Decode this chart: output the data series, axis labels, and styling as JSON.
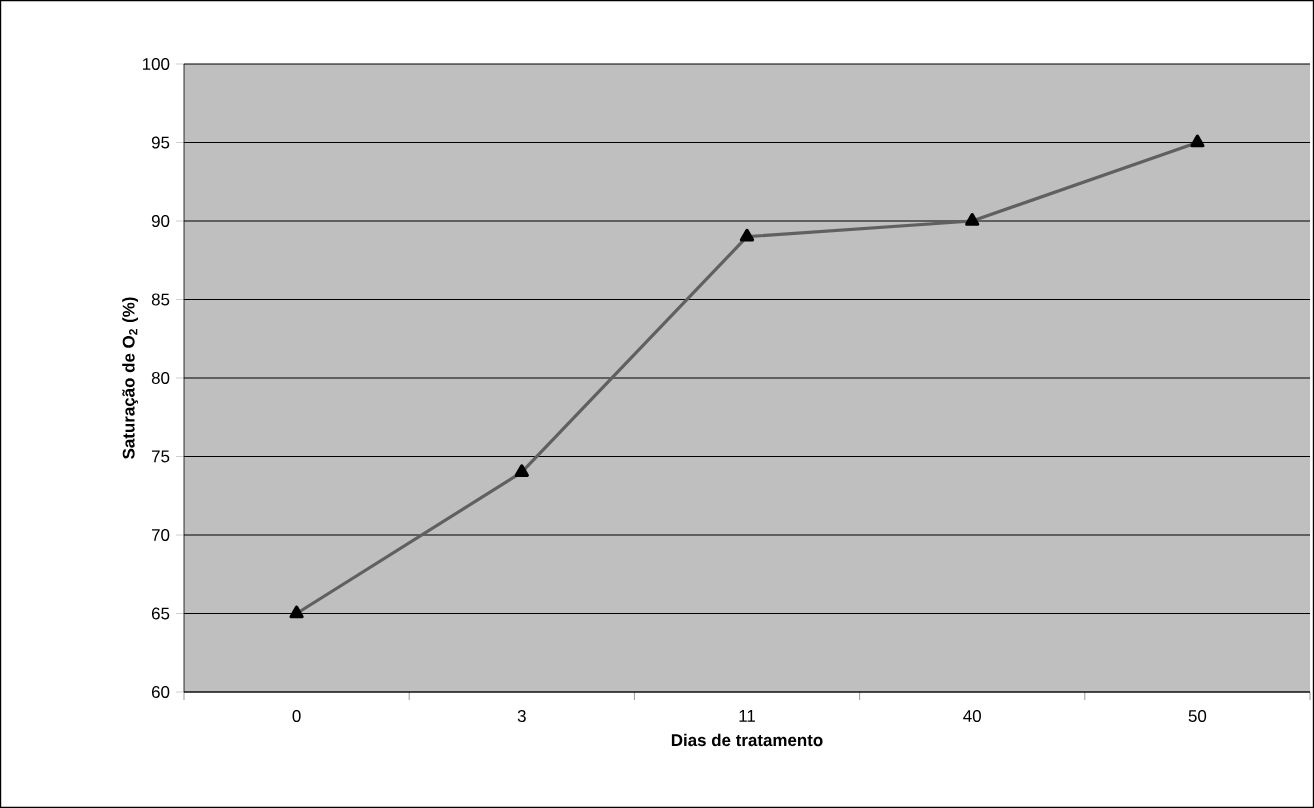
{
  "chart_data": {
    "type": "line",
    "xlabel": "Dias de tratamento",
    "ylabel": "Saturação de O$_{2}$ (%)",
    "categories": [
      "0",
      "3",
      "11",
      "40",
      "50"
    ],
    "series": [
      {
        "color": "#606060",
        "values": [
          65,
          74,
          89,
          90,
          95
        ]
      }
    ],
    "ylim": [
      60,
      100
    ],
    "yticks": [
      60,
      65,
      70,
      75,
      80,
      85,
      90,
      95,
      100
    ],
    "grid": "y",
    "marker": "triangle",
    "line_style": "solid"
  }
}
